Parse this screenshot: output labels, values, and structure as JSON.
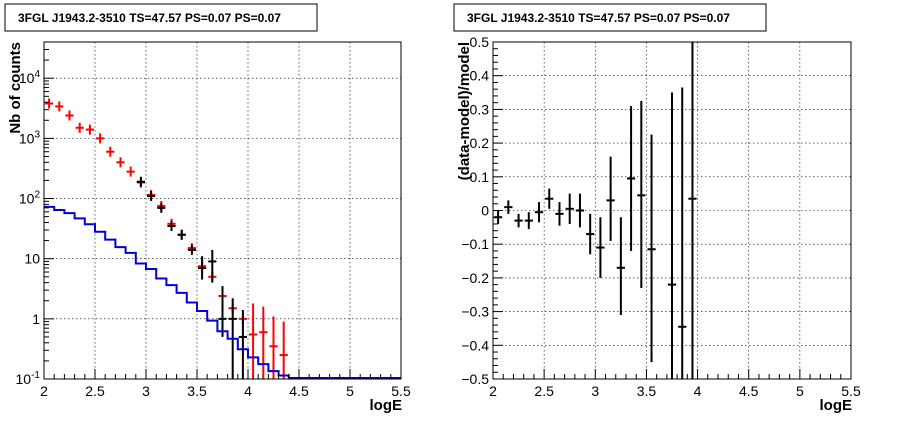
{
  "chart_data": [
    {
      "type": "step",
      "title": "3FGL J1943.2-3510 TS=47.57 PS=0.07 PS=0.07",
      "xlabel": "logE",
      "ylabel": "Nb of counts",
      "xlim": [
        2,
        5.5
      ],
      "ylim": [
        0.1,
        40000
      ],
      "yscale": "log",
      "grid": true,
      "x_ticks": [
        2,
        2.5,
        3,
        3.5,
        4,
        4.5,
        5,
        5.5
      ],
      "x_tick_labels": [
        "2",
        "2.5",
        "3",
        "3.5",
        "4",
        "4.5",
        "5",
        "5.5"
      ],
      "y_ticks": [
        0.1,
        1,
        10,
        100,
        1000,
        10000
      ],
      "y_tick_labels": [
        "10^-1",
        "1",
        "10",
        "10^2",
        "10^3",
        "10^4"
      ],
      "bin_width": 0.1,
      "series": [
        {
          "color": "#ff0000",
          "style": "model-total",
          "points": [
            {
              "x": 2.05,
              "y": 3800
            },
            {
              "x": 2.15,
              "y": 3400
            },
            {
              "x": 2.25,
              "y": 2400
            },
            {
              "x": 2.35,
              "y": 1500
            },
            {
              "x": 2.45,
              "y": 1400
            },
            {
              "x": 2.55,
              "y": 1000
            },
            {
              "x": 2.65,
              "y": 600
            },
            {
              "x": 2.75,
              "y": 400
            },
            {
              "x": 2.85,
              "y": 280
            },
            {
              "x": 2.95,
              "y": 185
            },
            {
              "x": 3.05,
              "y": 115
            },
            {
              "x": 3.15,
              "y": 75
            },
            {
              "x": 3.25,
              "y": 38
            },
            {
              "x": 3.35,
              "y": 25
            },
            {
              "x": 3.45,
              "y": 15
            },
            {
              "x": 3.55,
              "y": 7.5
            },
            {
              "x": 3.65,
              "y": 5
            },
            {
              "x": 3.75,
              "y": 2.4
            },
            {
              "x": 3.85,
              "y": 1.5
            },
            {
              "x": 3.95,
              "y": 1
            },
            {
              "x": 4.05,
              "y": 0.55,
              "ylo": 0.1,
              "yhi": 1.8
            },
            {
              "x": 4.15,
              "y": 0.6,
              "ylo": 0.1,
              "yhi": 1.6
            },
            {
              "x": 4.25,
              "y": 0.35,
              "ylo": 0.1,
              "yhi": 1.1
            },
            {
              "x": 4.35,
              "y": 0.25,
              "ylo": 0.1,
              "yhi": 0.9
            }
          ]
        },
        {
          "color": "#000000",
          "style": "data",
          "points": [
            {
              "x": 2.95,
              "y": 190
            },
            {
              "x": 3.05,
              "y": 110
            },
            {
              "x": 3.15,
              "y": 70
            },
            {
              "x": 3.25,
              "y": 35
            },
            {
              "x": 3.35,
              "y": 25
            },
            {
              "x": 3.45,
              "y": 14
            },
            {
              "x": 3.55,
              "y": 7,
              "ylo": 4.5,
              "yhi": 11
            },
            {
              "x": 3.65,
              "y": 9,
              "ylo": 4,
              "yhi": 14
            },
            {
              "x": 3.75,
              "y": 1,
              "ylo": 0.5,
              "yhi": 3.5
            },
            {
              "x": 3.85,
              "y": 1,
              "ylo": 0.1,
              "yhi": 2.2
            },
            {
              "x": 3.95,
              "y": 0.5,
              "ylo": 0.1,
              "yhi": 1.4
            }
          ]
        },
        {
          "color": "#0000dd",
          "style": "model-source",
          "bins": [
            {
              "x0": 2.0,
              "y": 70
            },
            {
              "x0": 2.1,
              "y": 62
            },
            {
              "x0": 2.2,
              "y": 55
            },
            {
              "x0": 2.3,
              "y": 45
            },
            {
              "x0": 2.4,
              "y": 36
            },
            {
              "x0": 2.5,
              "y": 27
            },
            {
              "x0": 2.6,
              "y": 20
            },
            {
              "x0": 2.7,
              "y": 15
            },
            {
              "x0": 2.8,
              "y": 12
            },
            {
              "x0": 2.9,
              "y": 8
            },
            {
              "x0": 3.0,
              "y": 6.5
            },
            {
              "x0": 3.1,
              "y": 4.5
            },
            {
              "x0": 3.2,
              "y": 3.5
            },
            {
              "x0": 3.3,
              "y": 2.6
            },
            {
              "x0": 3.4,
              "y": 1.8
            },
            {
              "x0": 3.5,
              "y": 1.3
            },
            {
              "x0": 3.6,
              "y": 0.9
            },
            {
              "x0": 3.7,
              "y": 0.6
            },
            {
              "x0": 3.8,
              "y": 0.45
            },
            {
              "x0": 3.9,
              "y": 0.3
            },
            {
              "x0": 4.0,
              "y": 0.22
            },
            {
              "x0": 4.1,
              "y": 0.17
            },
            {
              "x0": 4.2,
              "y": 0.13
            },
            {
              "x0": 4.3,
              "y": 0.11
            },
            {
              "x0": 4.4,
              "y": 0.1
            },
            {
              "x0": 4.5,
              "y": 0.1
            },
            {
              "x0": 4.6,
              "y": 0.1
            },
            {
              "x0": 4.7,
              "y": 0.1
            },
            {
              "x0": 4.8,
              "y": 0.1
            },
            {
              "x0": 4.9,
              "y": 0.1
            },
            {
              "x0": 5.0,
              "y": 0.1
            },
            {
              "x0": 5.1,
              "y": 0.1
            },
            {
              "x0": 5.2,
              "y": 0.1
            },
            {
              "x0": 5.3,
              "y": 0.1
            },
            {
              "x0": 5.4,
              "y": 0.1
            }
          ]
        }
      ]
    },
    {
      "type": "scatter",
      "title": "3FGL J1943.2-3510 TS=47.57 PS=0.07 PS=0.07",
      "xlabel": "logE",
      "ylabel": "(data-model)/model",
      "xlim": [
        2,
        5.5
      ],
      "ylim": [
        -0.5,
        0.5
      ],
      "yscale": "linear",
      "grid": true,
      "x_ticks": [
        2,
        2.5,
        3,
        3.5,
        4,
        4.5,
        5,
        5.5
      ],
      "x_tick_labels": [
        "2",
        "2.5",
        "3",
        "3.5",
        "4",
        "4.5",
        "5",
        "5.5"
      ],
      "y_ticks": [
        -0.5,
        -0.4,
        -0.3,
        -0.2,
        -0.1,
        0,
        0.1,
        0.2,
        0.3,
        0.4,
        0.5
      ],
      "y_tick_labels": [
        "−0.5",
        "−0.4",
        "−0.3",
        "−0.2",
        "−0.1",
        "0",
        "0.1",
        "0.2",
        "0.3",
        "0.4",
        "0.5"
      ],
      "bin_width": 0.1,
      "series": [
        {
          "color": "#000000",
          "points": [
            {
              "x": 2.05,
              "y": -0.02,
              "ylo": -0.04,
              "yhi": 0.0
            },
            {
              "x": 2.15,
              "y": 0.01,
              "ylo": -0.01,
              "yhi": 0.03
            },
            {
              "x": 2.25,
              "y": -0.03,
              "ylo": -0.05,
              "yhi": -0.01
            },
            {
              "x": 2.35,
              "y": -0.03,
              "ylo": -0.055,
              "yhi": -0.005
            },
            {
              "x": 2.45,
              "y": -0.005,
              "ylo": -0.035,
              "yhi": 0.025
            },
            {
              "x": 2.55,
              "y": 0.035,
              "ylo": 0.005,
              "yhi": 0.065
            },
            {
              "x": 2.65,
              "y": -0.01,
              "ylo": -0.045,
              "yhi": 0.025
            },
            {
              "x": 2.75,
              "y": 0.005,
              "ylo": -0.04,
              "yhi": 0.05
            },
            {
              "x": 2.85,
              "y": 0.0,
              "ylo": -0.05,
              "yhi": 0.05
            },
            {
              "x": 2.95,
              "y": -0.07,
              "ylo": -0.13,
              "yhi": -0.01
            },
            {
              "x": 3.05,
              "y": -0.11,
              "ylo": -0.2,
              "yhi": -0.02
            },
            {
              "x": 3.15,
              "y": 0.03,
              "ylo": -0.09,
              "yhi": 0.16
            },
            {
              "x": 3.25,
              "y": -0.17,
              "ylo": -0.31,
              "yhi": -0.02
            },
            {
              "x": 3.35,
              "y": 0.095,
              "ylo": -0.12,
              "yhi": 0.31
            },
            {
              "x": 3.45,
              "y": 0.045,
              "ylo": -0.23,
              "yhi": 0.325
            },
            {
              "x": 3.55,
              "y": -0.115,
              "ylo": -0.45,
              "yhi": 0.225
            },
            {
              "x": 3.75,
              "y": -0.22,
              "ylo": -0.5,
              "yhi": 0.35
            },
            {
              "x": 3.85,
              "y": -0.345,
              "ylo": -0.5,
              "yhi": 0.365
            },
            {
              "x": 3.95,
              "y": 0.035,
              "ylo": -0.5,
              "yhi": 0.5
            }
          ]
        }
      ]
    }
  ]
}
